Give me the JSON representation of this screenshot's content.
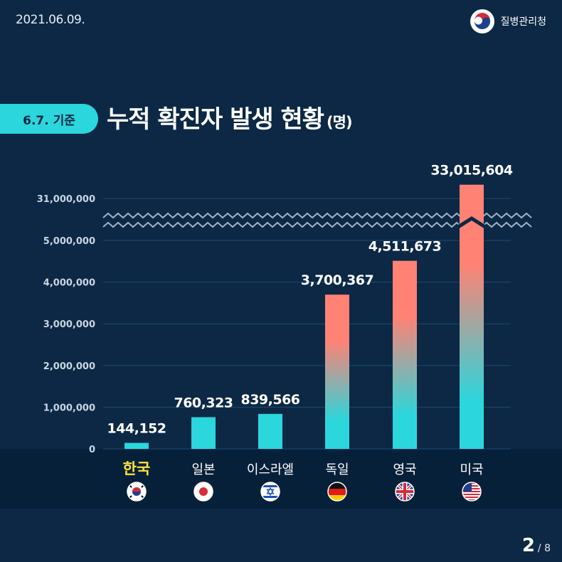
{
  "date": "2021.06.09.",
  "brand": {
    "name": "질병관리청",
    "logo": "kdca-taegeuk-logo"
  },
  "badge": "6.7. 기준",
  "title": "누적 확진자 발생 현황",
  "title_unit": "(명)",
  "pagination": {
    "current": "2",
    "total": "/ 8"
  },
  "colors": {
    "background": "#0c2845",
    "footer_band": "#07203a",
    "accent_cyan": "#2bd6dc",
    "bar_top_coral": "#ff8275",
    "highlight_yellow": "#ffe13c",
    "grid": "#1d4a72"
  },
  "chart_data": {
    "type": "bar",
    "title": "누적 확진자 발생 현황",
    "ylabel": "",
    "xlabel": "",
    "axis_break": {
      "from": 5000000,
      "to": 31000000
    },
    "ylim": [
      0,
      31000000
    ],
    "yticks": [
      0,
      1000000,
      2000000,
      3000000,
      4000000,
      5000000,
      31000000
    ],
    "ytick_labels": [
      "0",
      "1,000,000",
      "2,000,000",
      "3,000,000",
      "4,000,000",
      "5,000,000",
      "31,000,000"
    ],
    "grid": true,
    "categories": [
      "한국",
      "일본",
      "이스라엘",
      "독일",
      "영국",
      "미국"
    ],
    "flags": [
      "korea-flag-icon",
      "japan-flag-icon",
      "israel-flag-icon",
      "germany-flag-icon",
      "uk-flag-icon",
      "usa-flag-icon"
    ],
    "highlight": "한국",
    "values": [
      144152,
      760323,
      839566,
      3700367,
      4511673,
      33015604
    ],
    "value_labels": [
      "144,152",
      "760,323",
      "839,566",
      "3,700,367",
      "4,511,673",
      "33,015,604"
    ]
  }
}
